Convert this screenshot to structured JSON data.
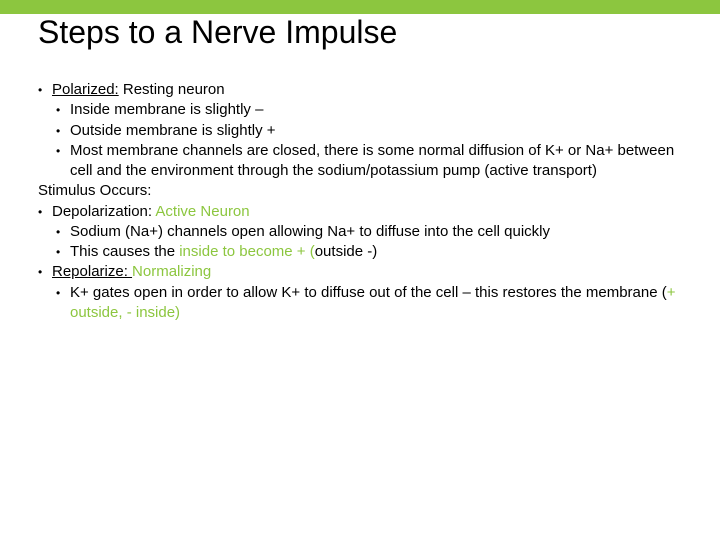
{
  "title": "Steps to a Nerve Impulse",
  "colors": {
    "accent": "#8cc63f",
    "text": "#000000",
    "background": "#ffffff"
  },
  "lines": {
    "l1_a": "Polarized:",
    "l1_b": "  Resting neuron",
    "l2": "Inside membrane is slightly –",
    "l3": "Outside membrane is slightly +",
    "l4": "Most membrane channels are closed, there is some normal diffusion of K+ or Na+ between cell and the environment through the sodium/potassium pump (active transport)",
    "l5": "Stimulus Occurs:",
    "l6_a": "Depolarization: ",
    "l6_b": "Active Neuron",
    "l7": "Sodium (Na+) channels open allowing Na+ to diffuse into the cell quickly",
    "l8_a": "This causes the ",
    "l8_b": "inside to become + (",
    "l8_c": "outside -)",
    "l9_a": "Repolarize: ",
    "l9_b": "Normalizing",
    "l10_a": " K+ gates open in order to allow K+ to diffuse out of the cell – this restores the membrane  (",
    "l10_b": "+ outside, - inside)"
  }
}
